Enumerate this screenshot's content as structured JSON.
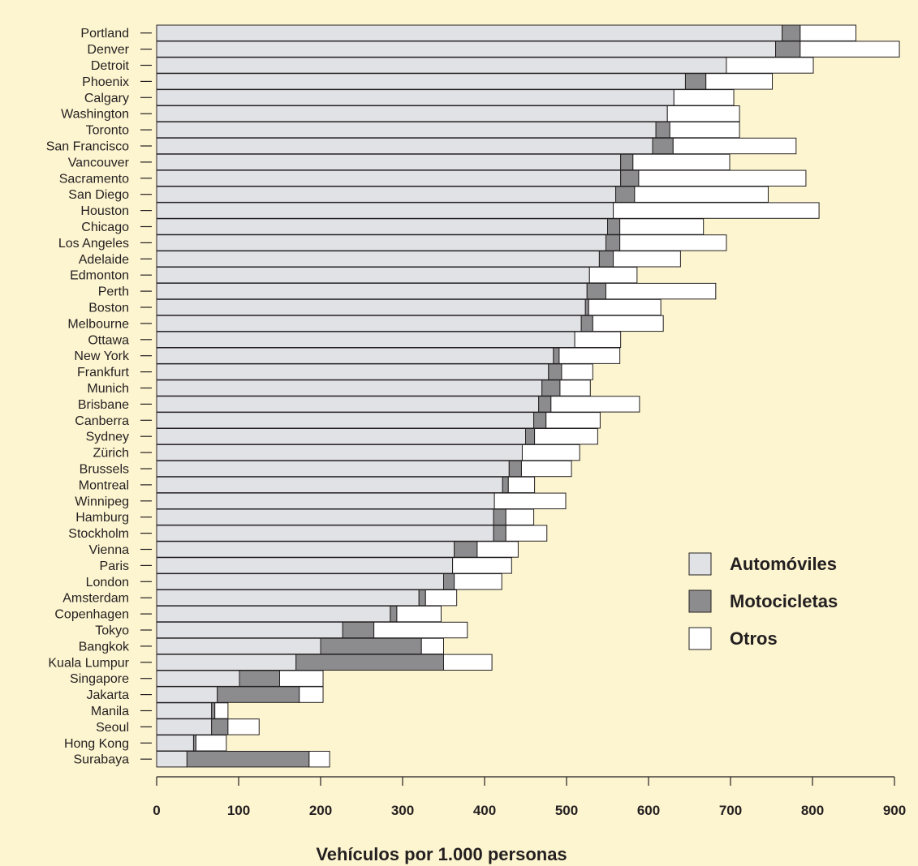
{
  "chart_data": {
    "type": "bar",
    "orientation": "horizontal",
    "stacked": true,
    "xlabel": "Vehículos por 1.000 personas",
    "xlim": [
      0,
      900
    ],
    "xticks": [
      "0",
      "100",
      "200",
      "300",
      "400",
      "500",
      "600",
      "700",
      "800",
      "900"
    ],
    "legend_position": "right",
    "categories": [
      "Portland",
      "Denver",
      "Detroit",
      "Phoenix",
      "Calgary",
      "Washington",
      "Toronto",
      "San Francisco",
      "Vancouver",
      "Sacramento",
      "San Diego",
      "Houston",
      "Chicago",
      "Los Angeles",
      "Adelaide",
      "Edmonton",
      "Perth",
      "Boston",
      "Melbourne",
      "Ottawa",
      "New York",
      "Frankfurt",
      "Munich",
      "Brisbane",
      "Canberra",
      "Sydney",
      "Zürich",
      "Brussels",
      "Montreal",
      "Winnipeg",
      "Hamburg",
      "Stockholm",
      "Vienna",
      "Paris",
      "London",
      "Amsterdam",
      "Copenhagen",
      "Tokyo",
      "Bangkok",
      "Kuala Lumpur",
      "Singapore",
      "Jakarta",
      "Manila",
      "Seoul",
      "Hong Kong",
      "Surabaya"
    ],
    "series": [
      {
        "name": "Automóviles",
        "color": "#e1e2e6",
        "values": [
          763,
          755,
          695,
          645,
          631,
          623,
          609,
          605,
          566,
          566,
          560,
          557,
          550,
          548,
          540,
          528,
          525,
          523,
          518,
          510,
          484,
          478,
          470,
          466,
          460,
          450,
          446,
          430,
          422,
          412,
          411,
          411,
          363,
          361,
          350,
          320,
          285,
          227,
          200,
          170,
          101,
          74,
          67,
          67,
          45,
          37
        ]
      },
      {
        "name": "Motocicletas",
        "color": "#8c8c8e",
        "values": [
          22,
          30,
          0,
          25,
          0,
          0,
          17,
          25,
          15,
          22,
          23,
          0,
          15,
          17,
          17,
          0,
          23,
          4,
          14,
          0,
          7,
          16,
          22,
          15,
          15,
          11,
          0,
          15,
          7,
          0,
          15,
          15,
          28,
          0,
          13,
          8,
          8,
          38,
          123,
          180,
          49,
          100,
          4,
          20,
          3,
          149
        ]
      },
      {
        "name": "Otros",
        "color": "#ffffff",
        "values": [
          68,
          121,
          106,
          81,
          73,
          88,
          85,
          150,
          118,
          204,
          163,
          251,
          102,
          130,
          82,
          58,
          134,
          88,
          86,
          56,
          74,
          38,
          37,
          108,
          66,
          77,
          70,
          61,
          32,
          87,
          34,
          50,
          50,
          72,
          58,
          38,
          54,
          114,
          27,
          59,
          53,
          29,
          16,
          38,
          37,
          25
        ]
      }
    ]
  }
}
